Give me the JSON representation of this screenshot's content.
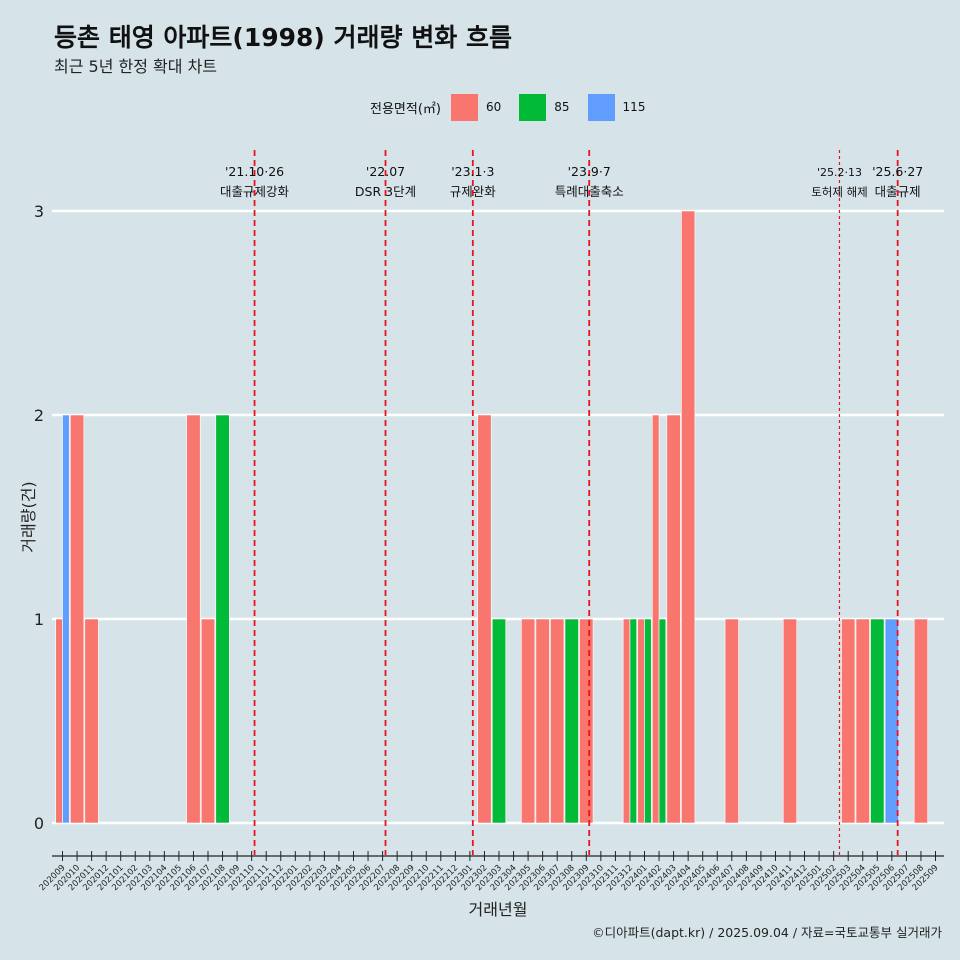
{
  "title": "등촌 태영 아파트(1998) 거래량 변화 흐름",
  "subtitle": "최근 5년 한정 확대 차트",
  "legend_title": "전용면적(㎡)",
  "caption": "©디아파트(dapt.kr) / 2025.09.04 / 자료=국토교통부 실거래가",
  "colors": {
    "60": "#f8766d",
    "85": "#00ba38",
    "115": "#619cff",
    "event_line": "#e8131e"
  },
  "chart_data": {
    "type": "bar",
    "stacked": true,
    "xlabel": "거래년월",
    "ylabel": "거래량(건)",
    "ylim": [
      -0.1,
      3.3
    ],
    "yticks": [
      0,
      1,
      2,
      3
    ],
    "grid": true,
    "legend_position": "top",
    "categories": [
      "202009",
      "202010",
      "202011",
      "202012",
      "202101",
      "202102",
      "202103",
      "202104",
      "202105",
      "202106",
      "202107",
      "202108",
      "202109",
      "202110",
      "202111",
      "202112",
      "202201",
      "202202",
      "202203",
      "202204",
      "202205",
      "202206",
      "202207",
      "202208",
      "202209",
      "202210",
      "202211",
      "202212",
      "202301",
      "202302",
      "202303",
      "202304",
      "202305",
      "202306",
      "202307",
      "202308",
      "202309",
      "202310",
      "202311",
      "202312",
      "202401",
      "202402",
      "202403",
      "202404",
      "202405",
      "202406",
      "202407",
      "202408",
      "202409",
      "202410",
      "202411",
      "202412",
      "202501",
      "202502",
      "202503",
      "202504",
      "202505",
      "202506",
      "202507",
      "202508",
      "202509"
    ],
    "bars": [
      {
        "month": "202009",
        "size": "60",
        "count": 1,
        "slot": 0,
        "of": 2
      },
      {
        "month": "202009",
        "size": "115",
        "count": 2,
        "slot": 1,
        "of": 2
      },
      {
        "month": "202010",
        "size": "60",
        "count": 2,
        "slot": 0,
        "of": 1
      },
      {
        "month": "202011",
        "size": "60",
        "count": 1,
        "slot": 0,
        "of": 1
      },
      {
        "month": "202106",
        "size": "60",
        "count": 2,
        "slot": 0,
        "of": 1
      },
      {
        "month": "202107",
        "size": "60",
        "count": 1,
        "slot": 0,
        "of": 1
      },
      {
        "month": "202108",
        "size": "85",
        "count": 2,
        "slot": 0,
        "of": 1
      },
      {
        "month": "202302",
        "size": "60",
        "count": 2,
        "slot": 0,
        "of": 1
      },
      {
        "month": "202303",
        "size": "85",
        "count": 1,
        "slot": 0,
        "of": 1
      },
      {
        "month": "202305",
        "size": "60",
        "count": 1,
        "slot": 0,
        "of": 1
      },
      {
        "month": "202306",
        "size": "60",
        "count": 1,
        "slot": 0,
        "of": 1
      },
      {
        "month": "202307",
        "size": "60",
        "count": 1,
        "slot": 0,
        "of": 1
      },
      {
        "month": "202308",
        "size": "85",
        "count": 1,
        "slot": 0,
        "of": 1
      },
      {
        "month": "202309",
        "size": "60",
        "count": 1,
        "slot": 0,
        "of": 1
      },
      {
        "month": "202312",
        "size": "60",
        "count": 1,
        "slot": 0,
        "of": 2
      },
      {
        "month": "202312",
        "size": "85",
        "count": 1,
        "slot": 1,
        "of": 2
      },
      {
        "month": "202401",
        "size": "60",
        "count": 1,
        "slot": 0,
        "of": 2
      },
      {
        "month": "202401",
        "size": "85",
        "count": 1,
        "slot": 1,
        "of": 2
      },
      {
        "month": "202402",
        "size": "60",
        "count": 2,
        "slot": 0,
        "of": 2
      },
      {
        "month": "202402",
        "size": "85",
        "count": 1,
        "slot": 1,
        "of": 2
      },
      {
        "month": "202403",
        "size": "60",
        "count": 2,
        "slot": 0,
        "of": 1
      },
      {
        "month": "202404",
        "size": "60",
        "count": 3,
        "slot": 0,
        "of": 1
      },
      {
        "month": "202407",
        "size": "60",
        "count": 1,
        "slot": 0,
        "of": 1
      },
      {
        "month": "202411",
        "size": "60",
        "count": 1,
        "slot": 0,
        "of": 1
      },
      {
        "month": "202503",
        "size": "60",
        "count": 1,
        "slot": 0,
        "of": 1
      },
      {
        "month": "202504",
        "size": "60",
        "count": 1,
        "slot": 0,
        "of": 1
      },
      {
        "month": "202505",
        "size": "85",
        "count": 1,
        "slot": 0,
        "of": 1
      },
      {
        "month": "202506",
        "size": "115",
        "count": 1,
        "slot": 0,
        "of": 1
      },
      {
        "month": "202508",
        "size": "60",
        "count": 1,
        "slot": 0,
        "of": 1
      }
    ],
    "events": [
      {
        "month_index": 13.2,
        "date": "'21.10·26",
        "label": "대출규제강화",
        "style": "dashed"
      },
      {
        "month_index": 22.2,
        "date": "'22.07",
        "label": "DSR 3단계",
        "style": "dashed"
      },
      {
        "month_index": 28.2,
        "date": "'23.1·3",
        "label": "규제완화",
        "style": "dashed"
      },
      {
        "month_index": 36.2,
        "date": "'23.9·7",
        "label": "특례대출축소",
        "style": "dashed"
      },
      {
        "month_index": 53.4,
        "date": "'25.2·13",
        "label": "토허제 해제",
        "style": "fine-dashed"
      },
      {
        "month_index": 57.4,
        "date": "'25.6·27",
        "label": "대출규제",
        "style": "dashed"
      }
    ]
  }
}
